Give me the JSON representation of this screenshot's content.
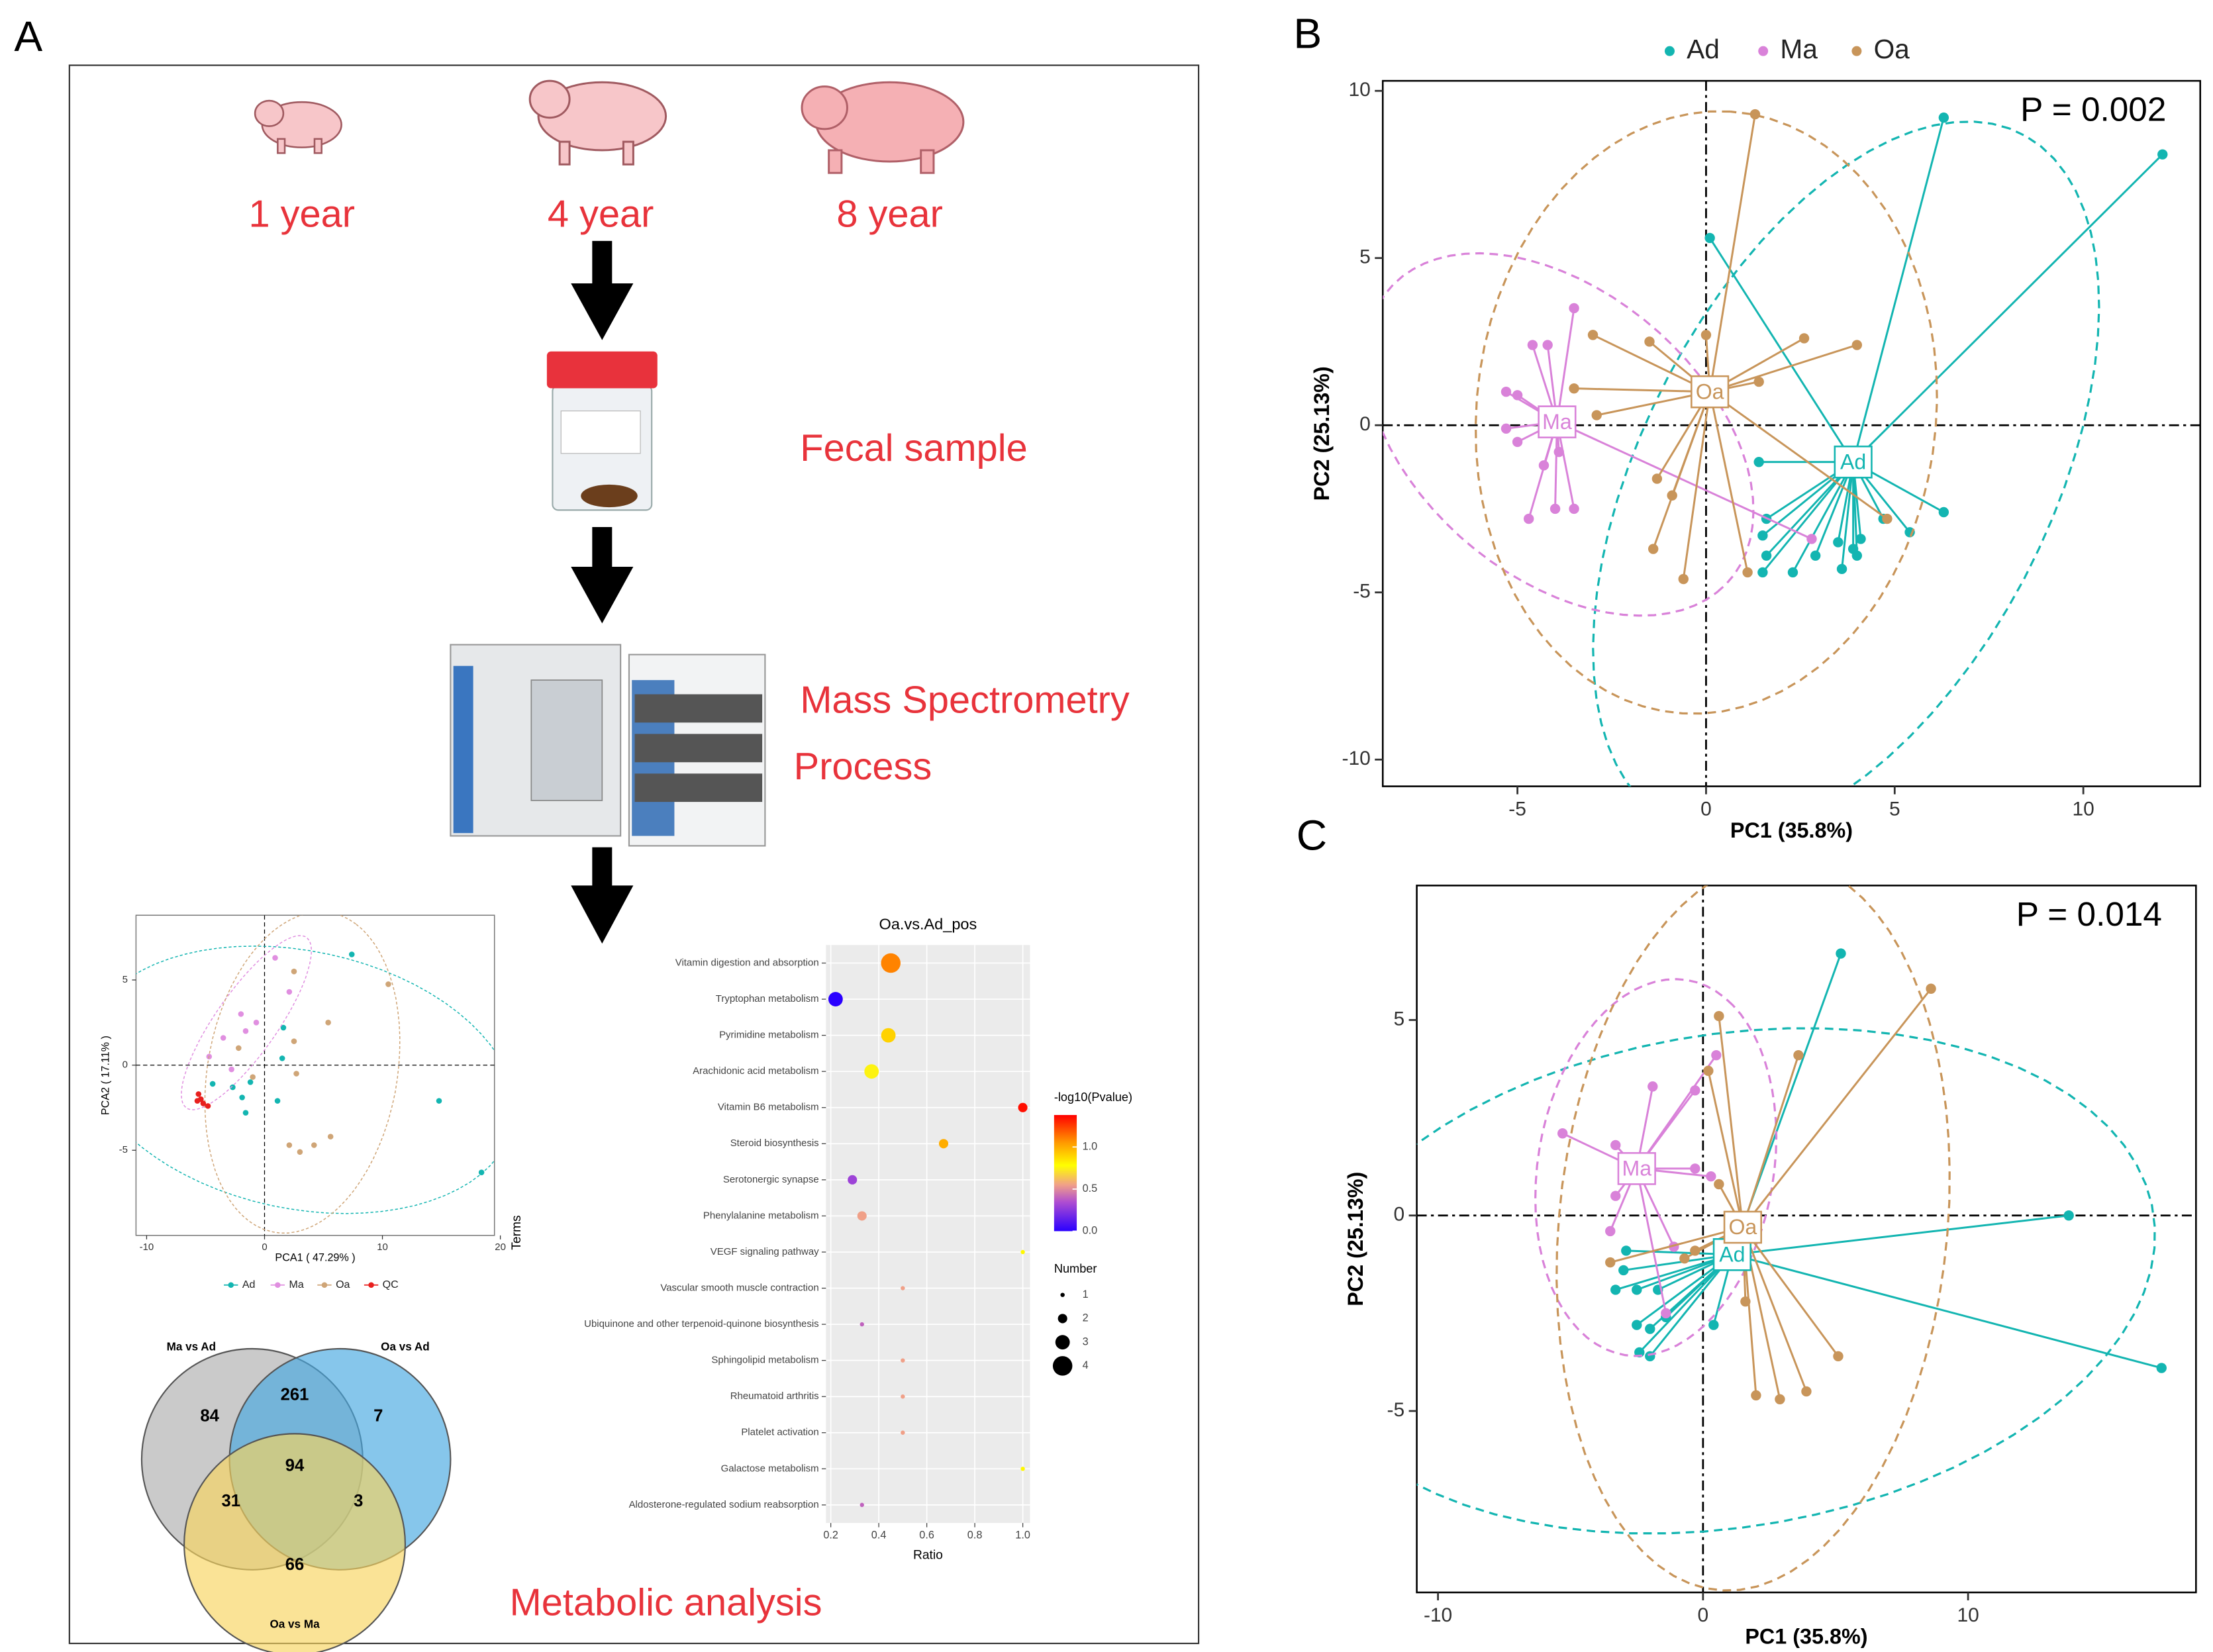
{
  "panel_labels": [
    "A",
    "B",
    "C"
  ],
  "diagram": {
    "ages": [
      "1 year",
      "4 year",
      "8 year"
    ],
    "steps": [
      "Fecal sample",
      "Mass Spectrometry",
      "Process",
      "Metabolic analysis"
    ]
  },
  "venn": {
    "sets": [
      "Ma vs Ad",
      "Oa vs Ad",
      "Oa vs Ma"
    ],
    "regions": {
      "ma_ad_only": 84,
      "ma_ad_oa_ad": 261,
      "oa_ad_only": 7,
      "all": 94,
      "ma_ad_oa_ma": 31,
      "oa_ad_oa_ma": 3,
      "oa_ma_only": 66
    }
  },
  "chart_data": [
    {
      "type": "pca",
      "xlabel": "PC1 (35.8%)",
      "ylabel": "PC2 (25.13%)",
      "annotation": "P = 0.002",
      "xlim": [
        -8.57,
        13.1
      ],
      "ylim": [
        -10.8,
        10.3
      ],
      "xticks": [
        -5,
        0,
        5,
        10
      ],
      "yticks": [
        -10,
        -5,
        0,
        5,
        10
      ],
      "zero_lines": true,
      "legend": "top",
      "series": [
        {
          "name": "Ad",
          "color": "#13b5b1",
          "ellipse": true,
          "centroid": [
            3.9,
            -1.1
          ],
          "x": [
            6.3,
            12.1,
            0.1,
            1.4,
            1.6,
            1.5,
            1.6,
            1.5,
            2.3,
            2.9,
            3.5,
            3.6,
            4.0,
            4.1,
            4.7,
            5.4,
            6.3,
            3.9
          ],
          "y": [
            9.2,
            8.1,
            5.6,
            -1.1,
            -2.8,
            -3.3,
            -3.9,
            -4.4,
            -4.4,
            -3.9,
            -3.5,
            -4.3,
            -3.9,
            -3.4,
            -2.8,
            -3.2,
            -2.6,
            -3.7
          ]
        },
        {
          "name": "Ma",
          "color": "#d982d9",
          "ellipse": true,
          "centroid": [
            -3.95,
            0.1
          ],
          "x": [
            -3.5,
            -4.6,
            -4.2,
            -5.3,
            -5.0,
            -5.3,
            -5.0,
            -4.3,
            -4.0,
            -4.7,
            -3.5,
            2.8,
            -3.9
          ],
          "y": [
            3.5,
            2.4,
            2.4,
            1.0,
            0.9,
            -0.1,
            -0.5,
            -1.2,
            -2.5,
            -2.8,
            -2.5,
            -3.4,
            -0.8
          ]
        },
        {
          "name": "Oa",
          "color": "#c8955a",
          "ellipse": true,
          "centroid": [
            0.1,
            1.0
          ],
          "x": [
            1.3,
            -3.0,
            -1.5,
            0,
            2.6,
            4.0,
            1.4,
            -3.5,
            -2.9,
            -1.3,
            -0.9,
            -1.4,
            -0.6,
            1.1,
            4.8
          ],
          "y": [
            9.3,
            2.7,
            2.5,
            2.7,
            2.6,
            2.4,
            1.3,
            1.1,
            0.3,
            -1.6,
            -2.1,
            -3.7,
            -4.6,
            -4.4,
            -2.8
          ]
        }
      ]
    },
    {
      "type": "pca",
      "xlabel": "PC1 (35.8%)",
      "ylabel": "PC2 (25.13%)",
      "annotation": "P = 0.014",
      "xlim": [
        -10.8,
        18.6
      ],
      "ylim": [
        -9.64,
        8.44
      ],
      "xticks": [
        -10,
        0,
        10
      ],
      "yticks": [
        -5,
        0,
        5
      ],
      "zero_lines": true,
      "series": [
        {
          "name": "Ad",
          "color": "#13b5b1",
          "ellipse": true,
          "centroid": [
            1.1,
            -1.0
          ],
          "x": [
            5.2,
            13.8,
            17.3,
            -2.9,
            -3.0,
            -3.3,
            -2.5,
            -1.7,
            -2.5,
            -2.0,
            -2.4,
            -2.0,
            0.4,
            -1.4
          ],
          "y": [
            6.7,
            0.0,
            -3.9,
            -0.9,
            -1.4,
            -1.9,
            -1.9,
            -1.9,
            -2.8,
            -2.9,
            -3.5,
            -3.6,
            -2.8,
            -2.6
          ]
        },
        {
          "name": "Ma",
          "color": "#d982d9",
          "ellipse": true,
          "centroid": [
            -2.5,
            1.2
          ],
          "x": [
            0.5,
            -1.9,
            -0.3,
            -3.3,
            -0.3,
            0.3,
            -5.3,
            -3.3,
            -1.1,
            -1.4,
            -3.5
          ],
          "y": [
            4.1,
            3.3,
            3.2,
            1.8,
            1.2,
            1.0,
            2.1,
            0.5,
            -0.8,
            -2.5,
            -0.4
          ]
        },
        {
          "name": "Oa",
          "color": "#c8955a",
          "ellipse": true,
          "centroid": [
            1.5,
            -0.3
          ],
          "x": [
            0.6,
            3.6,
            8.6,
            0.2,
            0.6,
            -3.5,
            -0.7,
            -0.3,
            1.6,
            2.0,
            2.9,
            3.9,
            5.1
          ],
          "y": [
            5.1,
            4.1,
            5.8,
            3.7,
            0.8,
            -1.2,
            -1.1,
            -0.9,
            -2.2,
            -4.6,
            -4.7,
            -4.5,
            -3.6
          ]
        }
      ]
    },
    {
      "type": "dot",
      "title": "Oa.vs.Ad_pos",
      "xlabel": "Ratio",
      "ylabel": "Terms",
      "categories": [
        "Vitamin digestion and absorption",
        "Tryptophan metabolism",
        "Pyrimidine metabolism",
        "Arachidonic acid metabolism",
        "Vitamin B6 metabolism",
        "Steroid biosynthesis",
        "Serotonergic synapse",
        "Phenylalanine metabolism",
        "VEGF signaling pathway",
        "Vascular smooth muscle contraction",
        "Ubiquinone and other terpenoid-quinone biosynthesis",
        "Sphingolipid metabolism",
        "Rheumatoid arthritis",
        "Platelet activation",
        "Galactose metabolism",
        "Aldosterone-regulated sodium reabsorption"
      ],
      "values": [
        0.45,
        0.22,
        0.44,
        0.37,
        1.0,
        0.67,
        0.29,
        0.33,
        1.0,
        0.5,
        0.33,
        0.5,
        0.5,
        0.5,
        1.0,
        0.33
      ],
      "number": [
        4,
        3,
        3,
        3,
        2,
        2,
        2,
        2,
        1,
        1,
        1,
        1,
        1,
        1,
        1,
        1
      ],
      "pvalue": [
        1.1,
        0.0,
        0.9,
        0.75,
        1.35,
        1.0,
        0.3,
        0.55,
        0.8,
        0.55,
        0.4,
        0.55,
        0.55,
        0.55,
        0.8,
        0.4
      ],
      "xlim": [
        0.18,
        1.03
      ],
      "xticks": [
        0.2,
        0.4,
        0.6,
        0.8,
        {
          "value": 1,
          "label": "1.0"
        }
      ],
      "color_title": "-log10(Pvalue)",
      "clim": [
        0,
        1.38
      ],
      "cticks": [
        {
          "value": 0,
          "label": "0.0"
        },
        0.5,
        {
          "value": 1,
          "label": "1.0"
        }
      ],
      "colorscale": [
        [
          0,
          "#2a00ff"
        ],
        [
          0.35,
          "#b04ed0"
        ],
        [
          0.55,
          "#f0a088"
        ],
        [
          0.78,
          "#ffff00"
        ],
        [
          1.05,
          "#ff9a00"
        ],
        [
          1.38,
          "#ff0000"
        ]
      ],
      "size_title": "Number",
      "size_ticks": [
        1,
        2,
        3,
        4
      ],
      "grid": true
    },
    {
      "type": "pca",
      "small": true,
      "xlabel": "PCA1 ( 47.29% )",
      "ylabel": "PCA2 ( 17.11% )",
      "xlim": [
        -10.9,
        19.5
      ],
      "ylim": [
        -10,
        8.8
      ],
      "xticks": [
        -10,
        0,
        10,
        20
      ],
      "yticks": [
        -5,
        0,
        5
      ],
      "zero_lines": true,
      "legend": "bottom",
      "series": [
        {
          "name": "Ad",
          "color": "#13b5b1",
          "ellipse": true,
          "x": [
            7.4,
            14.8,
            18.4,
            1.6,
            1.5,
            -1.2,
            -1.9,
            -1.6,
            -2.7,
            1.1,
            -4.4
          ],
          "y": [
            6.5,
            -2.1,
            -6.3,
            2.2,
            0.4,
            -1.0,
            -1.9,
            -2.8,
            -1.3,
            -2.1,
            -1.1
          ]
        },
        {
          "name": "Ma",
          "color": "#e08fe0",
          "ellipse": true,
          "x": [
            0.9,
            2.1,
            -2.0,
            -0.7,
            -3.5,
            -4.7,
            -2.8,
            -1.6
          ],
          "y": [
            6.3,
            4.3,
            3.0,
            2.5,
            1.6,
            0.5,
            -0.25,
            2.0
          ]
        },
        {
          "name": "Oa",
          "color": "#cfa577",
          "ellipse": true,
          "x": [
            2.5,
            10.5,
            5.4,
            2.5,
            2.7,
            2.1,
            3.0,
            4.2,
            5.6,
            -2.2,
            -1.0
          ],
          "y": [
            5.5,
            4.75,
            2.5,
            1.4,
            -0.5,
            -4.7,
            -5.1,
            -4.7,
            -4.2,
            1.0,
            -0.7
          ]
        },
        {
          "name": "QC",
          "color": "#e8201e",
          "x": [
            -5.6,
            -5.4,
            -5.2,
            -4.8,
            -5.7
          ],
          "y": [
            -1.7,
            -2.0,
            -2.25,
            -2.4,
            -2.1
          ]
        }
      ]
    }
  ]
}
